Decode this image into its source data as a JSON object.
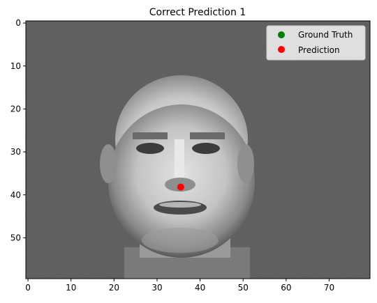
{
  "chart_data": {
    "type": "scatter",
    "title": "Correct Prediction 1",
    "xlabel": "",
    "ylabel": "",
    "xlim": [
      -0.5,
      79.5
    ],
    "ylim": [
      59.5,
      -0.5
    ],
    "x_ticks": [
      0,
      10,
      20,
      30,
      40,
      50,
      60,
      70
    ],
    "y_ticks": [
      0,
      10,
      20,
      30,
      40,
      50
    ],
    "background_image": "grayscale-face-image",
    "grid": false,
    "legend_position": "top-right",
    "series": [
      {
        "name": "Ground Truth",
        "color": "#008000",
        "x": [
          35.5
        ],
        "y": [
          38.2
        ]
      },
      {
        "name": "Prediction",
        "color": "#ff0000",
        "x": [
          35.5
        ],
        "y": [
          38.2
        ]
      }
    ]
  }
}
